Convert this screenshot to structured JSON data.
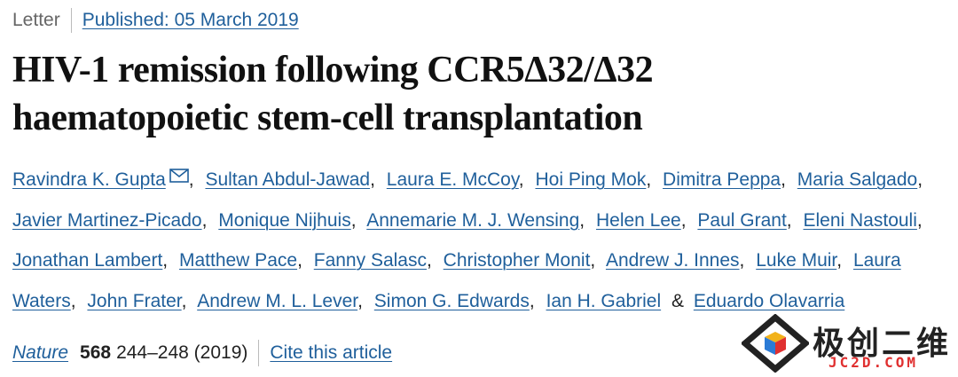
{
  "header": {
    "article_type": "Letter",
    "published": "Published: 05 March 2019"
  },
  "title": "HIV-1 remission following CCR5Δ32/Δ32 haematopoietic stem-cell transplantation",
  "authors": [
    "Ravindra K. Gupta",
    "Sultan Abdul-Jawad",
    "Laura E. McCoy",
    "Hoi Ping Mok",
    "Dimitra Peppa",
    "Maria Salgado",
    "Javier Martinez-Picado",
    "Monique Nijhuis",
    "Annemarie M. J. Wensing",
    "Helen Lee",
    "Paul Grant",
    "Eleni Nastouli",
    "Jonathan Lambert",
    "Matthew Pace",
    "Fanny Salasc",
    "Christopher Monit",
    "Andrew J. Innes",
    "Luke Muir",
    "Laura Waters",
    "John Frater",
    "Andrew M. L. Lever",
    "Simon G. Edwards",
    "Ian H. Gabriel",
    "Eduardo Olavarria"
  ],
  "author_separator": ",",
  "final_conjunction": "&",
  "citation": {
    "journal": "Nature",
    "volume": "568",
    "pages": "244–248 (2019)",
    "cite_link": "Cite this article"
  },
  "watermark": {
    "name": "极创二维",
    "site": "JC2D.COM"
  }
}
